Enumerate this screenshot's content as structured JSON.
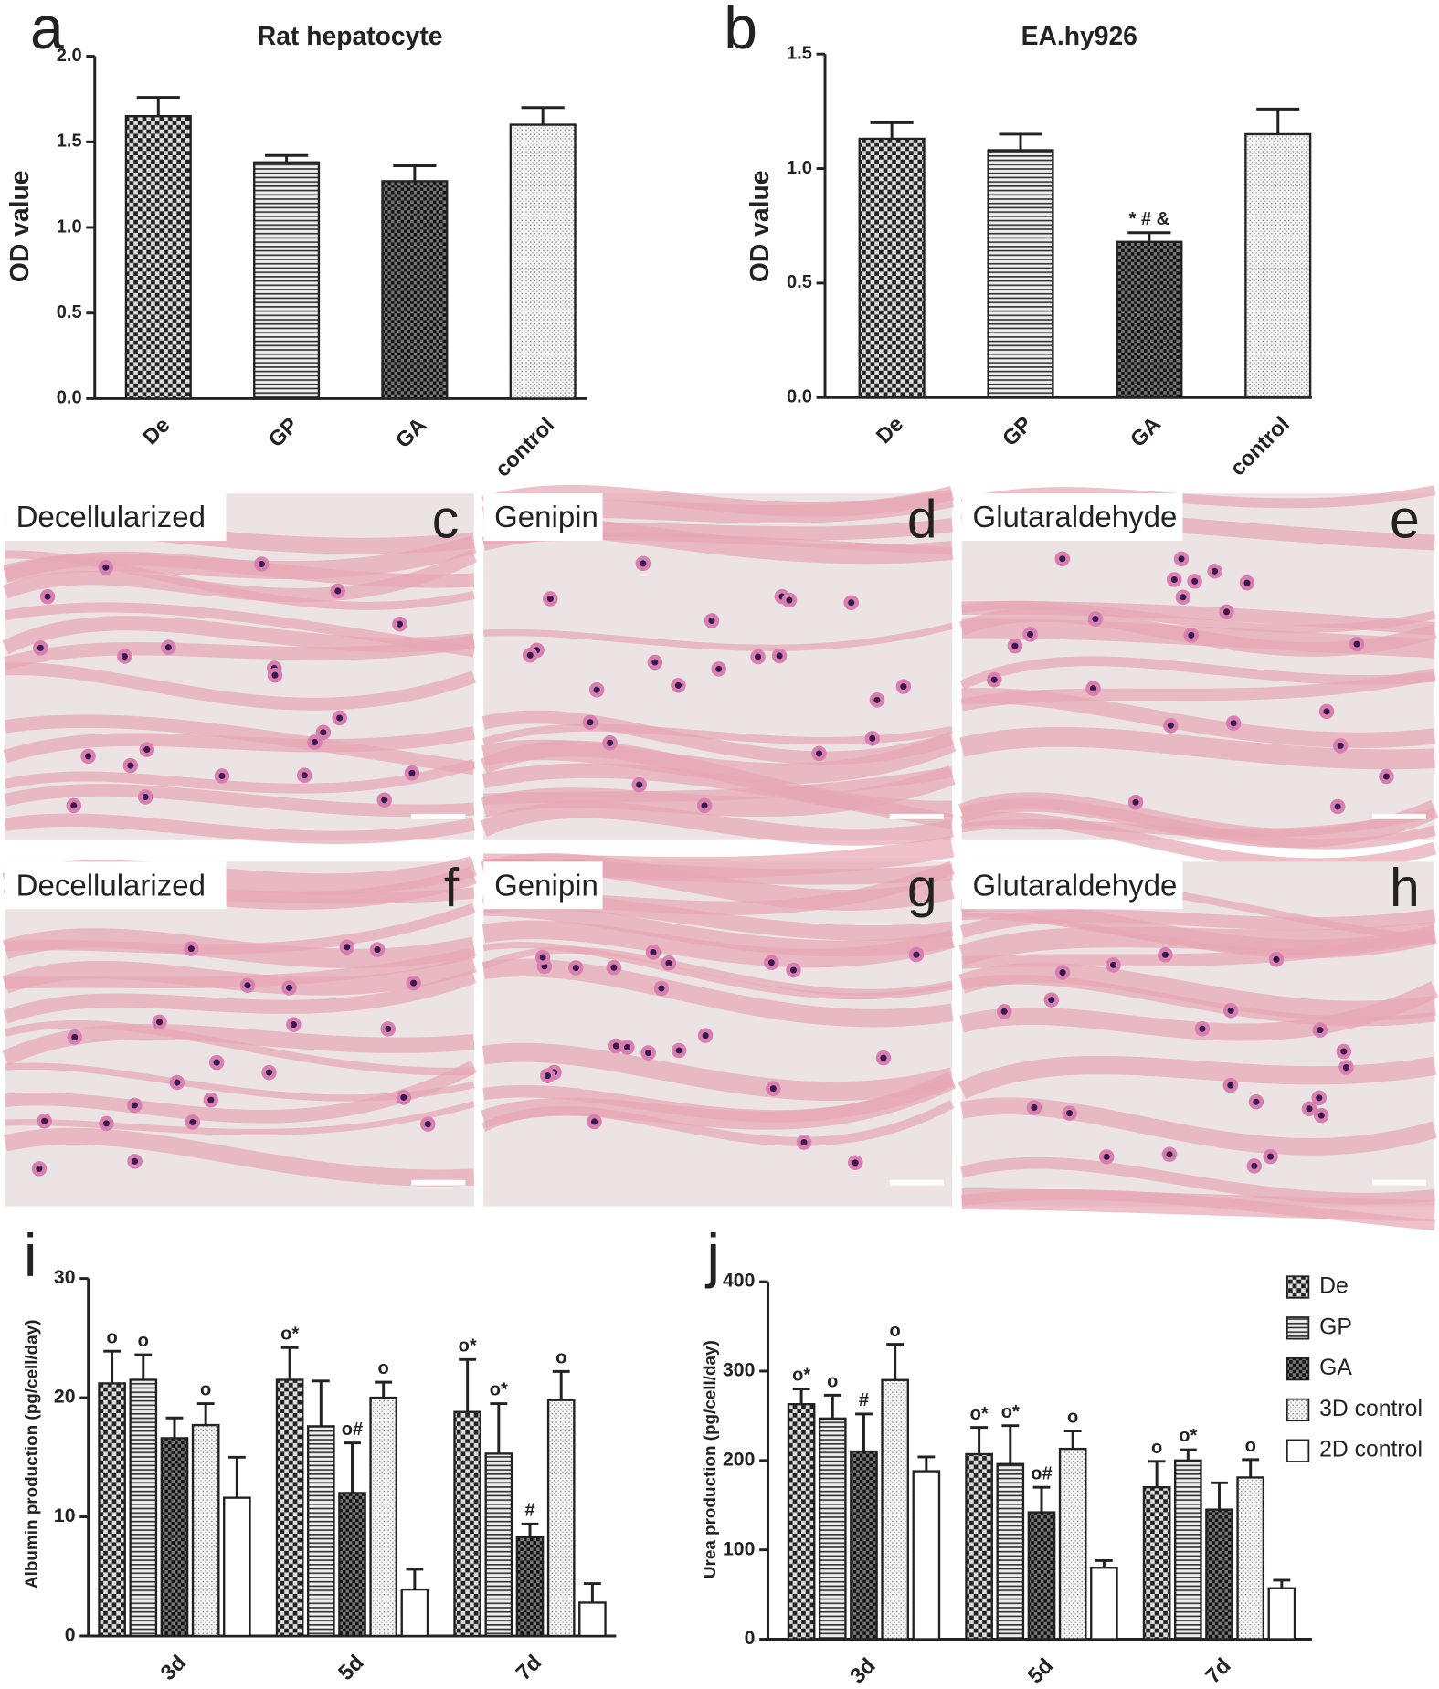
{
  "chart_data": [
    {
      "type": "bar",
      "panel": "a",
      "title": "Rat hepatocyte",
      "y_label": "OD value",
      "categories": [
        "De",
        "GP",
        "GA",
        "control"
      ],
      "values": [
        1.65,
        1.38,
        1.27,
        1.6
      ],
      "errors": [
        0.11,
        0.04,
        0.09,
        0.1
      ],
      "patterns": [
        "checker",
        "hlines",
        "dense-checker",
        "dots"
      ],
      "ylim": [
        0,
        2
      ],
      "yticks": [
        {
          "value": 0,
          "label": "0.0"
        },
        0.5,
        {
          "value": 1,
          "label": "1.0"
        },
        1.5,
        {
          "value": 2,
          "label": "2.0"
        }
      ]
    },
    {
      "type": "bar",
      "panel": "b",
      "title": "EA.hy926",
      "y_label": "OD value",
      "categories": [
        "De",
        "GP",
        "GA",
        "control"
      ],
      "values": [
        1.13,
        1.08,
        0.68,
        1.15
      ],
      "errors": [
        0.07,
        0.07,
        0.04,
        0.11
      ],
      "patterns": [
        "checker",
        "hlines",
        "dense-checker",
        "dots"
      ],
      "annotations": [
        null,
        null,
        "* # &",
        null
      ],
      "ylim": [
        0,
        1.5
      ],
      "yticks": [
        {
          "value": 0,
          "label": "0.0"
        },
        0.5,
        {
          "value": 1,
          "label": "1.0"
        },
        1.5
      ]
    },
    {
      "type": "bar",
      "panel": "i",
      "y_label": "Albumin production (pg/cell/day)",
      "categories": [
        "3d",
        "5d",
        "7d"
      ],
      "series": [
        {
          "name": "De",
          "pattern": "checker",
          "values": [
            21.2,
            21.5,
            18.8
          ],
          "errors": [
            2.7,
            2.7,
            4.4
          ],
          "annotations": [
            "o",
            "o*",
            "o*"
          ]
        },
        {
          "name": "GP",
          "pattern": "hlines",
          "values": [
            21.5,
            17.6,
            15.3
          ],
          "errors": [
            2.1,
            3.8,
            4.2
          ],
          "annotations": [
            "o",
            null,
            "o*"
          ]
        },
        {
          "name": "GA",
          "pattern": "dense-checker",
          "values": [
            16.6,
            12.0,
            8.3
          ],
          "errors": [
            1.7,
            4.2,
            1.1
          ],
          "annotations": [
            null,
            "o#",
            "#"
          ]
        },
        {
          "name": "3D control",
          "pattern": "dots",
          "values": [
            17.7,
            20.0,
            19.8
          ],
          "errors": [
            1.8,
            1.3,
            2.4
          ],
          "annotations": [
            "o",
            "o",
            "o"
          ]
        },
        {
          "name": "2D control",
          "pattern": "none",
          "values": [
            11.6,
            3.9,
            2.8
          ],
          "errors": [
            3.4,
            1.7,
            1.6
          ],
          "annotations": [
            null,
            null,
            null
          ]
        }
      ],
      "ylim": [
        0,
        30
      ],
      "yticks": [
        0,
        10,
        20,
        30
      ]
    },
    {
      "type": "bar",
      "panel": "j",
      "y_label": "Urea production (pg/cell/day)",
      "categories": [
        "3d",
        "5d",
        "7d"
      ],
      "legend": "upper right",
      "series": [
        {
          "name": "De",
          "pattern": "checker",
          "values": [
            263,
            207,
            170
          ],
          "errors": [
            17,
            30,
            29
          ],
          "annotations": [
            "o*",
            "o*",
            "o"
          ]
        },
        {
          "name": "GP",
          "pattern": "hlines",
          "values": [
            247,
            196,
            200
          ],
          "errors": [
            26,
            43,
            12
          ],
          "annotations": [
            "o",
            "o*",
            "o*"
          ]
        },
        {
          "name": "GA",
          "pattern": "dense-checker",
          "values": [
            210,
            142,
            145
          ],
          "errors": [
            42,
            28,
            30
          ],
          "annotations": [
            "#",
            "o#",
            null
          ]
        },
        {
          "name": "3D control",
          "pattern": "dots",
          "values": [
            290,
            213,
            181
          ],
          "errors": [
            40,
            20,
            20
          ],
          "annotations": [
            "o",
            "o",
            "o"
          ]
        },
        {
          "name": "2D control",
          "pattern": "none",
          "values": [
            188,
            80,
            57
          ],
          "errors": [
            16,
            8,
            9
          ],
          "annotations": [
            null,
            null,
            null
          ]
        }
      ],
      "ylim": [
        0,
        400
      ],
      "yticks": [
        0,
        100,
        200,
        300,
        400
      ]
    }
  ],
  "micrographs": [
    {
      "label": "Decellularized",
      "panel": "c"
    },
    {
      "label": "Genipin",
      "panel": "d"
    },
    {
      "label": "Glutaraldehyde",
      "panel": "e"
    },
    {
      "label": "Decellularized",
      "panel": "f"
    },
    {
      "label": "Genipin",
      "panel": "g"
    },
    {
      "label": "Glutaraldehyde",
      "panel": "h"
    }
  ]
}
